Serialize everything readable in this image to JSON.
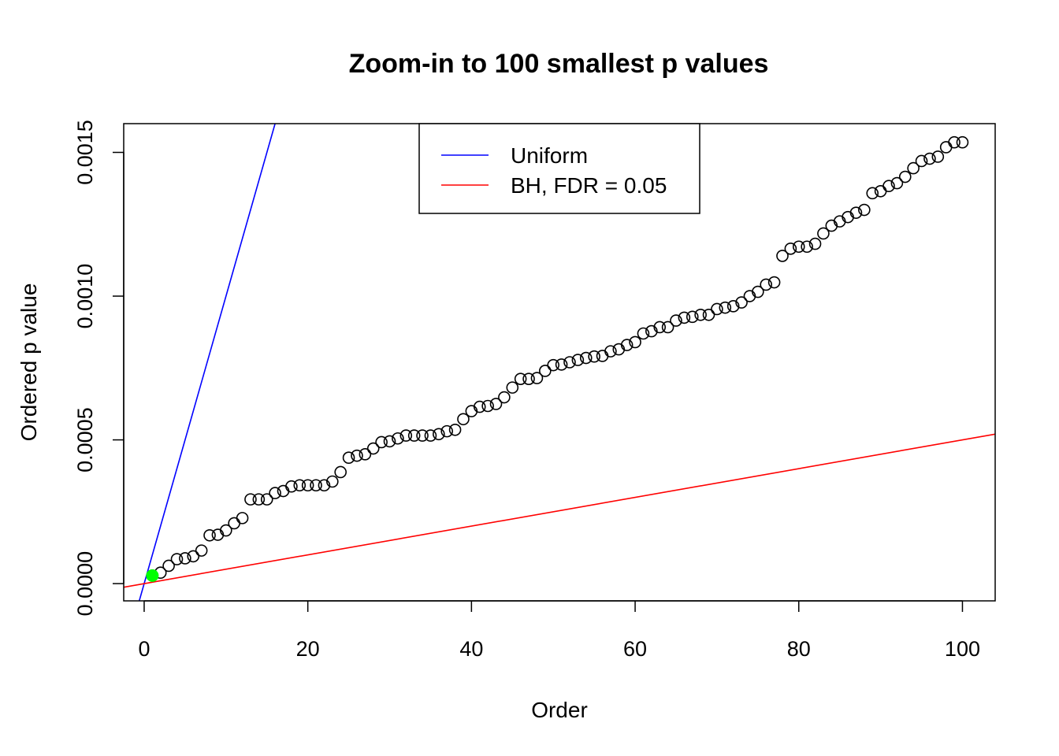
{
  "chart_data": {
    "type": "scatter",
    "title": "Zoom-in to 100 smallest p values",
    "xlabel": "Order",
    "ylabel": "Ordered p value",
    "xlim": [
      -2.5,
      104
    ],
    "ylim": [
      -6e-05,
      0.0016
    ],
    "x_ticks": [
      0,
      20,
      40,
      60,
      80,
      100
    ],
    "x_tick_labels": [
      "0",
      "20",
      "40",
      "60",
      "80",
      "100"
    ],
    "y_ticks": [
      0,
      0.0005,
      0.001,
      0.0015
    ],
    "y_tick_labels": [
      "0.0000",
      "0.0005",
      "0.0010",
      "0.0015"
    ],
    "points": {
      "x": [
        1,
        2,
        3,
        4,
        5,
        6,
        7,
        8,
        9,
        10,
        11,
        12,
        13,
        14,
        15,
        16,
        17,
        18,
        19,
        20,
        21,
        22,
        23,
        24,
        25,
        26,
        27,
        28,
        29,
        30,
        31,
        32,
        33,
        34,
        35,
        36,
        37,
        38,
        39,
        40,
        41,
        42,
        43,
        44,
        45,
        46,
        47,
        48,
        49,
        50,
        51,
        52,
        53,
        54,
        55,
        56,
        57,
        58,
        59,
        60,
        61,
        62,
        63,
        64,
        65,
        66,
        67,
        68,
        69,
        70,
        71,
        72,
        73,
        74,
        75,
        76,
        77,
        78,
        79,
        80,
        81,
        82,
        83,
        84,
        85,
        86,
        87,
        88,
        89,
        90,
        91,
        92,
        93,
        94,
        95,
        96,
        97,
        98,
        99,
        100
      ],
      "y": [
        2.8e-05,
        3.8e-05,
        6.2e-05,
        8.5e-05,
        8.8e-05,
        9.5e-05,
        0.000115,
        0.000168,
        0.00017,
        0.000185,
        0.00021,
        0.000228,
        0.000293,
        0.000293,
        0.000293,
        0.000315,
        0.000322,
        0.000338,
        0.000342,
        0.000342,
        0.000342,
        0.000342,
        0.000355,
        0.000388,
        0.000438,
        0.000445,
        0.00045,
        0.00047,
        0.000492,
        0.000495,
        0.000505,
        0.000515,
        0.000515,
        0.000515,
        0.000515,
        0.00052,
        0.00053,
        0.000535,
        0.000572,
        0.0006,
        0.000615,
        0.000618,
        0.000625,
        0.000648,
        0.000682,
        0.000712,
        0.000712,
        0.000715,
        0.00074,
        0.00076,
        0.000762,
        0.00077,
        0.000778,
        0.000785,
        0.00079,
        0.000792,
        0.000808,
        0.000815,
        0.00083,
        0.00084,
        0.00087,
        0.000878,
        0.000892,
        0.000892,
        0.000915,
        0.000925,
        0.000928,
        0.000935,
        0.000935,
        0.000955,
        0.00096,
        0.000965,
        0.000978,
        0.001,
        0.001015,
        0.00104,
        0.001048,
        0.00114,
        0.001165,
        0.001172,
        0.001172,
        0.001182,
        0.001218,
        0.001245,
        0.00126,
        0.001275,
        0.00129,
        0.0013,
        0.001358,
        0.001365,
        0.001383,
        0.001393,
        0.001415,
        0.001445,
        0.00147,
        0.001478,
        0.001485,
        0.001518,
        0.001535,
        0.001535
      ]
    },
    "highlight_point": {
      "x": 1,
      "y": 2.8e-05,
      "color": "#00ff00"
    },
    "lines": [
      {
        "name": "Uniform",
        "color": "#0000ff",
        "slope": 0.0001,
        "intercept": 0
      },
      {
        "name": "BH, FDR = 0.05",
        "color": "#ff0000",
        "slope": 5e-06,
        "intercept": 0
      }
    ],
    "legend": {
      "position": "top-center",
      "entries": [
        {
          "label": "Uniform",
          "color": "#0000ff"
        },
        {
          "label": "BH, FDR = 0.05",
          "color": "#ff0000"
        }
      ]
    },
    "grid": false
  }
}
